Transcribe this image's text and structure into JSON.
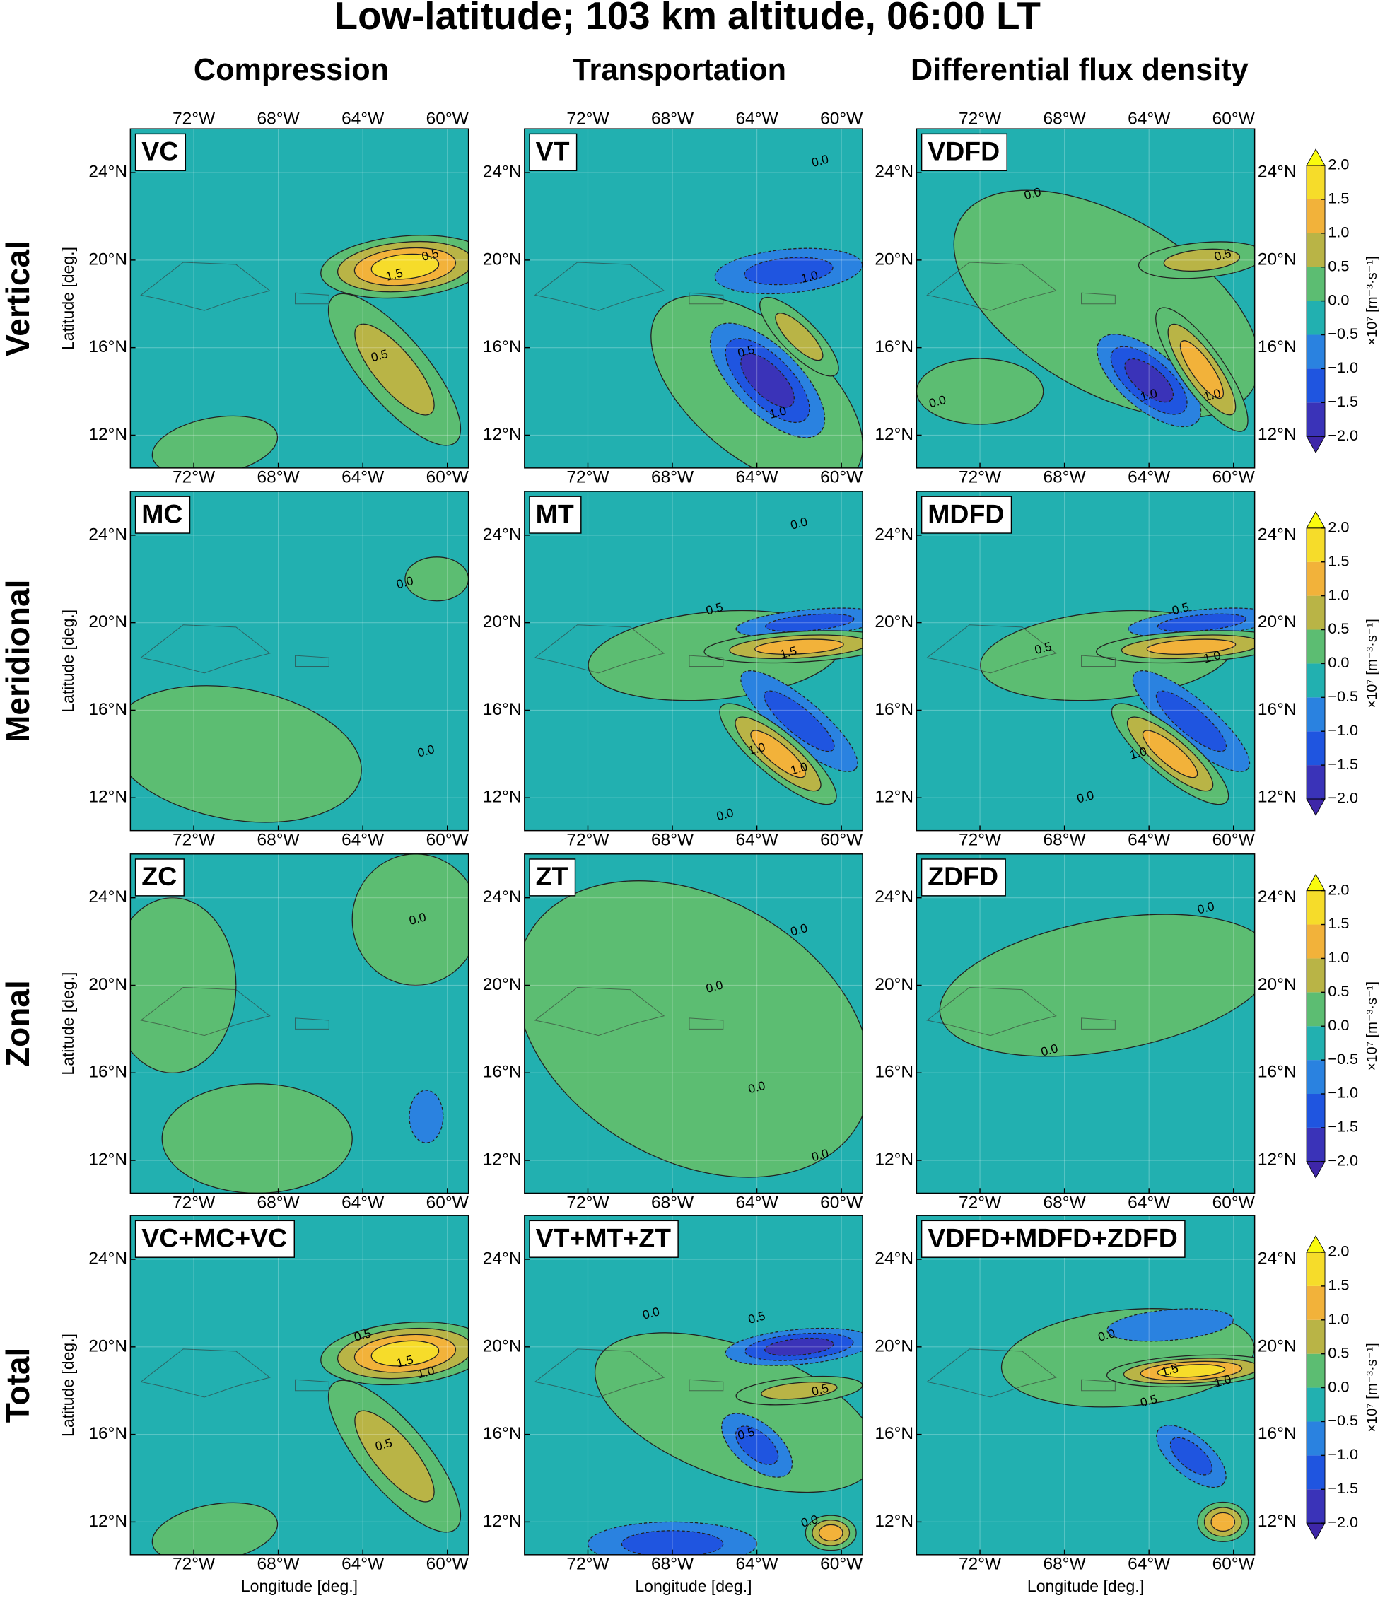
{
  "chart_data": {
    "type": "contour",
    "title": "Low-latitude; 103 km altitude, 06:00 LT",
    "column_titles": [
      "Compression",
      "Transportation",
      "Differential flux density"
    ],
    "row_titles": [
      "Vertical",
      "Meridional",
      "Zonal",
      "Total"
    ],
    "xlabel": "Longitude [deg.]",
    "ylabel": "Latitude [deg.]",
    "xlim": [
      -75,
      -59
    ],
    "ylim": [
      10.5,
      26
    ],
    "xticks": [
      {
        "value": -72,
        "label": "72°W"
      },
      {
        "value": -68,
        "label": "68°W"
      },
      {
        "value": -64,
        "label": "64°W"
      },
      {
        "value": -60,
        "label": "60°W"
      }
    ],
    "yticks": [
      {
        "value": 12,
        "label": "12°N"
      },
      {
        "value": 16,
        "label": "16°N"
      },
      {
        "value": 20,
        "label": "20°N"
      },
      {
        "value": 24,
        "label": "24°N"
      }
    ],
    "grid": true,
    "panels": [
      {
        "label": "VC",
        "contour_labels": [
          "1.5",
          "0.5",
          "0.5"
        ]
      },
      {
        "label": "VT",
        "contour_labels": [
          "0.0",
          "1.0",
          "0.5",
          "1.0"
        ]
      },
      {
        "label": "VDFD",
        "contour_labels": [
          "0.0",
          "0.5",
          "1.0",
          "1.0",
          "0.0"
        ]
      },
      {
        "label": "MC",
        "contour_labels": [
          "0.0",
          "0.0"
        ]
      },
      {
        "label": "MT",
        "contour_labels": [
          "0.0",
          "0.5",
          "1.5",
          "1.0",
          "1.0",
          "0.0"
        ]
      },
      {
        "label": "MDFD",
        "contour_labels": [
          "0.5",
          "1.0",
          "0.5",
          "1.0",
          "0.0"
        ]
      },
      {
        "label": "ZC",
        "contour_labels": [
          "0.0"
        ]
      },
      {
        "label": "ZT",
        "contour_labels": [
          "0.0",
          "0.0",
          "0.0",
          "0.0"
        ]
      },
      {
        "label": "ZDFD",
        "contour_labels": [
          "0.0",
          "0.0"
        ]
      },
      {
        "label": "VC+MC+VC",
        "contour_labels": [
          "0.5",
          "1.5",
          "1.0",
          "0.5"
        ]
      },
      {
        "label": "VT+MT+ZT",
        "contour_labels": [
          "0.5",
          "0.5",
          "0.0",
          "0.5",
          "0.0"
        ]
      },
      {
        "label": "VDFD+MDFD+ZDFD",
        "contour_labels": [
          "1.5",
          "1.0",
          "0.5",
          "0.0"
        ]
      }
    ],
    "colorbar": {
      "label": "×10⁷ [m⁻³·s⁻¹]",
      "ticks": [
        {
          "value": 2,
          "label": "2.0"
        },
        {
          "value": 1.5,
          "label": "1.5"
        },
        {
          "value": 1,
          "label": "1.0"
        },
        {
          "value": 0.5,
          "label": "0.5"
        },
        {
          "value": 0,
          "label": "0.0"
        },
        {
          "value": -0.5,
          "label": "−0.5"
        },
        {
          "value": -1,
          "label": "−1.0"
        },
        {
          "value": -1.5,
          "label": "−1.5"
        },
        {
          "value": -2,
          "label": "−2.0"
        }
      ],
      "colors": [
        "#3a33b8",
        "#1f55e0",
        "#2a82e0",
        "#22b0b0",
        "#5cbd72",
        "#b9b446",
        "#f2b23a",
        "#f6dc2a"
      ],
      "extend_colors": [
        "#3e26a8",
        "#f9fb0e"
      ]
    }
  }
}
